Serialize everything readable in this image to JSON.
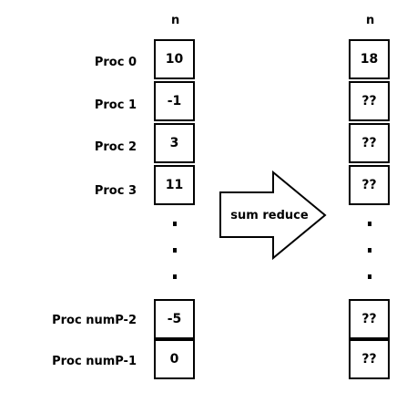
{
  "left_column": {
    "header": "n",
    "rows": [
      {
        "label": "Proc 0",
        "value": "10"
      },
      {
        "label": "Proc 1",
        "value": "-1"
      },
      {
        "label": "Proc 2",
        "value": "3"
      },
      {
        "label": "Proc 3",
        "value": "11"
      }
    ],
    "tail_rows": [
      {
        "label": "Proc numP-2",
        "value": "-5"
      },
      {
        "label": "Proc numP-1",
        "value": "0"
      }
    ],
    "ellipsis": "..."
  },
  "right_column": {
    "header": "n",
    "values": [
      "18",
      "??",
      "??",
      "??"
    ],
    "tail_values": [
      "??",
      "??"
    ]
  },
  "operation": {
    "label": "sum reduce"
  }
}
